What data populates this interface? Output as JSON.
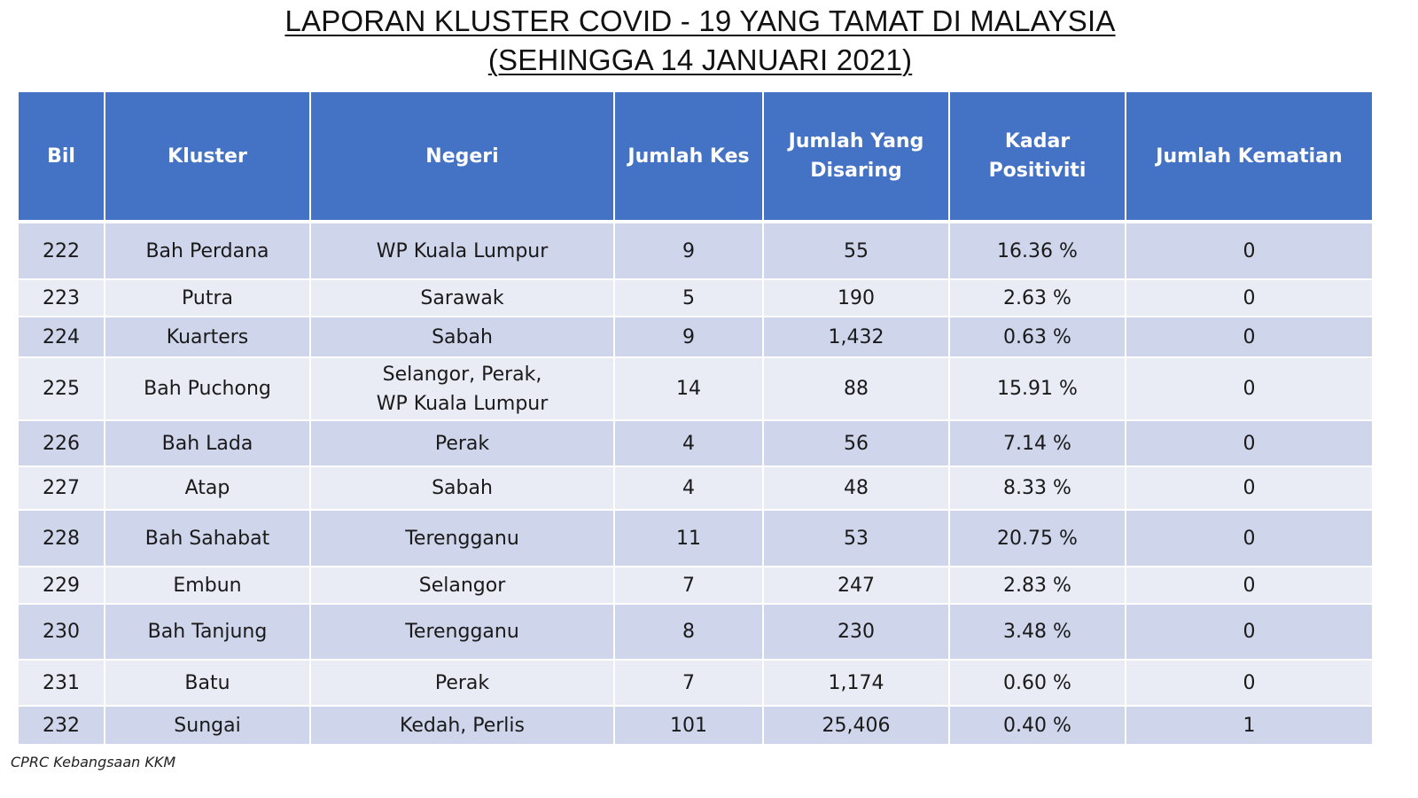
{
  "title": {
    "line1": "LAPORAN KLUSTER COVID - 19 YANG TAMAT DI MALAYSIA",
    "line2": "(SEHINGGA 14 JANUARI 2021)"
  },
  "table": {
    "headers": {
      "bil": "Bil",
      "kluster": "Kluster",
      "negeri": "Negeri",
      "jumlah_kes": "Jumlah Kes",
      "jumlah_disaring_1": "Jumlah Yang",
      "jumlah_disaring_2": "Disaring",
      "kadar_positiviti": "Kadar Positiviti",
      "jumlah_kematian": "Jumlah Kematian"
    },
    "rows": [
      {
        "bil": "222",
        "kluster": "Bah Perdana",
        "negeri_1": "WP Kuala Lumpur",
        "negeri_2": "",
        "kes": "9",
        "disaring": "55",
        "positiviti": "16.36 %",
        "kematian": "0"
      },
      {
        "bil": "223",
        "kluster": "Putra",
        "negeri_1": "Sarawak",
        "negeri_2": "",
        "kes": "5",
        "disaring": "190",
        "positiviti": "2.63 %",
        "kematian": "0"
      },
      {
        "bil": "224",
        "kluster": "Kuarters",
        "negeri_1": "Sabah",
        "negeri_2": "",
        "kes": "9",
        "disaring": "1,432",
        "positiviti": "0.63 %",
        "kematian": "0"
      },
      {
        "bil": "225",
        "kluster": "Bah Puchong",
        "negeri_1": "Selangor, Perak,",
        "negeri_2": "WP Kuala Lumpur",
        "kes": "14",
        "disaring": "88",
        "positiviti": "15.91 %",
        "kematian": "0"
      },
      {
        "bil": "226",
        "kluster": "Bah Lada",
        "negeri_1": "Perak",
        "negeri_2": "",
        "kes": "4",
        "disaring": "56",
        "positiviti": "7.14 %",
        "kematian": "0"
      },
      {
        "bil": "227",
        "kluster": "Atap",
        "negeri_1": "Sabah",
        "negeri_2": "",
        "kes": "4",
        "disaring": "48",
        "positiviti": "8.33 %",
        "kematian": "0"
      },
      {
        "bil": "228",
        "kluster": "Bah Sahabat",
        "negeri_1": "Terengganu",
        "negeri_2": "",
        "kes": "11",
        "disaring": "53",
        "positiviti": "20.75 %",
        "kematian": "0"
      },
      {
        "bil": "229",
        "kluster": "Embun",
        "negeri_1": "Selangor",
        "negeri_2": "",
        "kes": "7",
        "disaring": "247",
        "positiviti": "2.83 %",
        "kematian": "0"
      },
      {
        "bil": "230",
        "kluster": "Bah Tanjung",
        "negeri_1": "Terengganu",
        "negeri_2": "",
        "kes": "8",
        "disaring": "230",
        "positiviti": "3.48 %",
        "kematian": "0"
      },
      {
        "bil": "231",
        "kluster": "Batu",
        "negeri_1": "Perak",
        "negeri_2": "",
        "kes": "7",
        "disaring": "1,174",
        "positiviti": "0.60 %",
        "kematian": "0"
      },
      {
        "bil": "232",
        "kluster": "Sungai",
        "negeri_1": "Kedah, Perlis",
        "negeri_2": "",
        "kes": "101",
        "disaring": "25,406",
        "positiviti": "0.40 %",
        "kematian": "1"
      }
    ]
  },
  "footer": {
    "source": "CPRC Kebangsaan KKM"
  }
}
